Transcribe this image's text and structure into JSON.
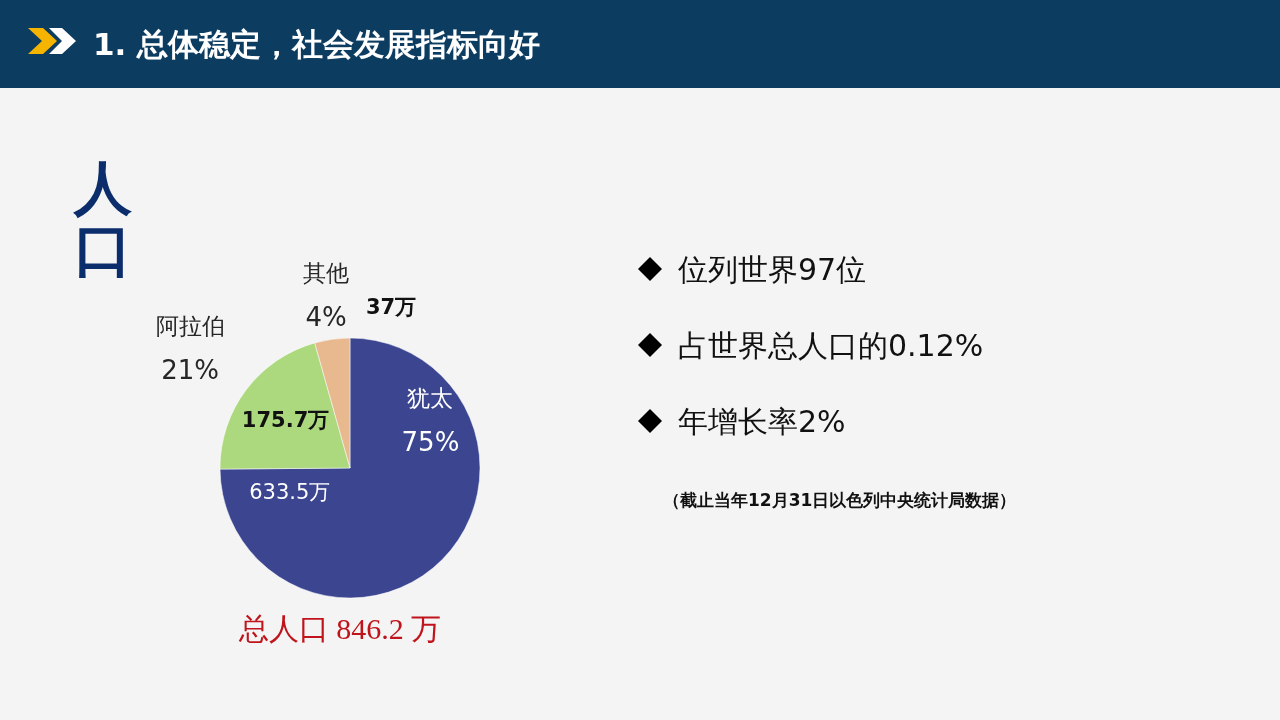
{
  "chart_data": {
    "type": "pie",
    "title": "1. 总体稳定，社会发展指标向好",
    "subtitle": "人口",
    "categories": [
      "犹太",
      "阿拉伯",
      "其他"
    ],
    "values": [
      633.5,
      175.7,
      37
    ],
    "colors": [
      "#3b4590",
      "#acd87e",
      "#e8b98e"
    ],
    "value_labels": [
      "633.5万",
      "175.7万",
      "37万"
    ],
    "annotations": [
      {
        "text": "75%",
        "x": "犹太"
      },
      {
        "text": "21%",
        "x": "阿拉伯"
      },
      {
        "text": "4%",
        "x": "其他"
      },
      "总人口 846.2 万",
      "位列世界97位",
      "占世界总人口的0.12%",
      "年增长率2%",
      "（截止当年12月31日以色列中央统计局数据）"
    ]
  }
}
